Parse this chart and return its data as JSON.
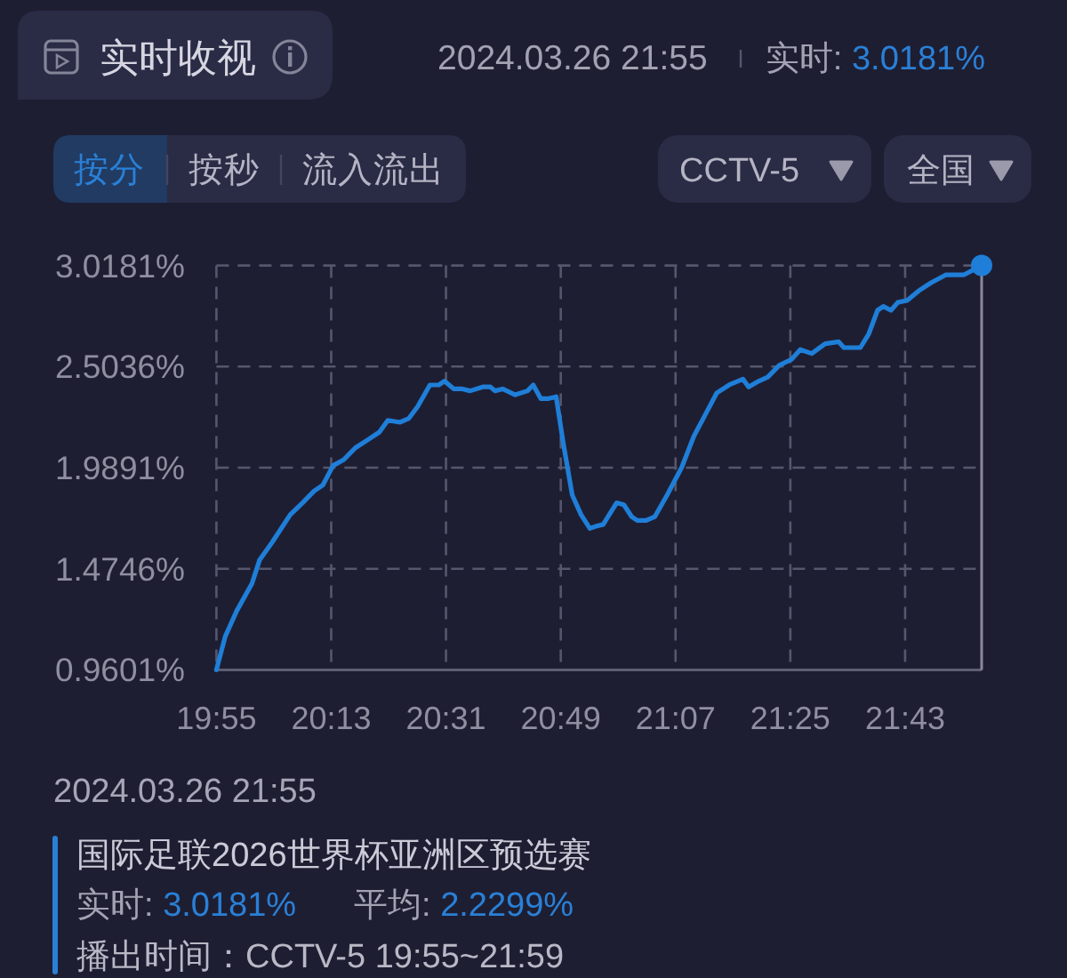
{
  "chart_data": {
    "type": "line",
    "title": "实时收视",
    "subtitle": "2024.03.26 21:55",
    "annotations": [
      "实时: 3.0181%",
      "按分",
      "按秒",
      "流入流出",
      "CCTV-5",
      "全国",
      "2024.03.26 21:55",
      "国际足联2026世界杯亚洲区预选赛",
      "实时: 3.0181%",
      "平均: 2.2299%",
      "播出时间：CCTV-5 19:55~21:59"
    ],
    "xlim": [
      19.917,
      21.917
    ],
    "xticks": [
      {
        "value": 19.917,
        "label": "19:55"
      },
      {
        "value": 20.217,
        "label": "20:13"
      },
      {
        "value": 20.517,
        "label": "20:31"
      },
      {
        "value": 20.817,
        "label": "20:49"
      },
      {
        "value": 21.117,
        "label": "21:07"
      },
      {
        "value": 21.417,
        "label": "21:25"
      },
      {
        "value": 21.717,
        "label": "21:43"
      }
    ],
    "ylim": [
      0.9601,
      3.0181
    ],
    "yticks": [
      {
        "value": 0.9601,
        "label": "0.9601%"
      },
      {
        "value": 1.4746,
        "label": "1.4746%"
      },
      {
        "value": 1.9891,
        "label": "1.9891%"
      },
      {
        "value": 2.5036,
        "label": "2.5036%"
      },
      {
        "value": 3.0181,
        "label": "3.0181%"
      }
    ],
    "grid": true,
    "line_style": "solid",
    "series": [
      {
        "color": "#1f7fd8",
        "x": [
          19.917,
          19.94,
          19.97,
          20.01,
          20.03,
          20.063,
          20.11,
          20.142,
          20.172,
          20.195,
          20.222,
          20.25,
          20.28,
          20.312,
          20.343,
          20.365,
          20.397,
          20.42,
          20.443,
          20.475,
          20.498,
          20.513,
          20.537,
          20.56,
          20.58,
          20.613,
          20.633,
          20.645,
          20.665,
          20.698,
          20.73,
          20.745,
          20.765,
          20.783,
          20.805,
          20.823,
          20.847,
          20.87,
          20.893,
          20.908,
          20.928,
          20.947,
          20.963,
          20.982,
          21.002,
          21.017,
          21.04,
          21.063,
          21.095,
          21.133,
          21.165,
          21.195,
          21.225,
          21.257,
          21.293,
          21.308,
          21.335,
          21.358,
          21.388,
          21.42,
          21.443,
          21.473,
          21.508,
          21.543,
          21.557,
          21.582,
          21.6,
          21.622,
          21.645,
          21.66,
          21.68,
          21.698,
          21.722,
          21.753,
          21.785,
          21.823,
          21.87,
          21.917
        ],
        "values": [
          0.9601,
          1.13,
          1.26,
          1.4,
          1.52,
          1.61,
          1.75,
          1.81,
          1.87,
          1.9,
          2.0,
          2.03,
          2.09,
          2.13,
          2.17,
          2.23,
          2.22,
          2.24,
          2.3,
          2.41,
          2.41,
          2.43,
          2.39,
          2.39,
          2.38,
          2.4,
          2.4,
          2.38,
          2.39,
          2.36,
          2.38,
          2.41,
          2.34,
          2.34,
          2.35,
          2.12,
          1.85,
          1.75,
          1.68,
          1.69,
          1.7,
          1.76,
          1.81,
          1.8,
          1.74,
          1.72,
          1.72,
          1.74,
          1.85,
          1.99,
          2.15,
          2.26,
          2.37,
          2.41,
          2.44,
          2.4,
          2.43,
          2.45,
          2.51,
          2.54,
          2.59,
          2.57,
          2.62,
          2.63,
          2.6,
          2.6,
          2.6,
          2.67,
          2.79,
          2.81,
          2.79,
          2.83,
          2.84,
          2.89,
          2.93,
          2.97,
          2.97,
          3.0181
        ]
      },
      {
        "type": "scatter",
        "color": "#1f7fd8",
        "marker": "circle",
        "x": [
          21.917
        ],
        "values": [
          3.0181
        ]
      }
    ],
    "ref_lines": [
      {
        "axis": "x",
        "value": 21.917,
        "color": "#8a8a9a",
        "line_style": "solid"
      }
    ]
  }
}
